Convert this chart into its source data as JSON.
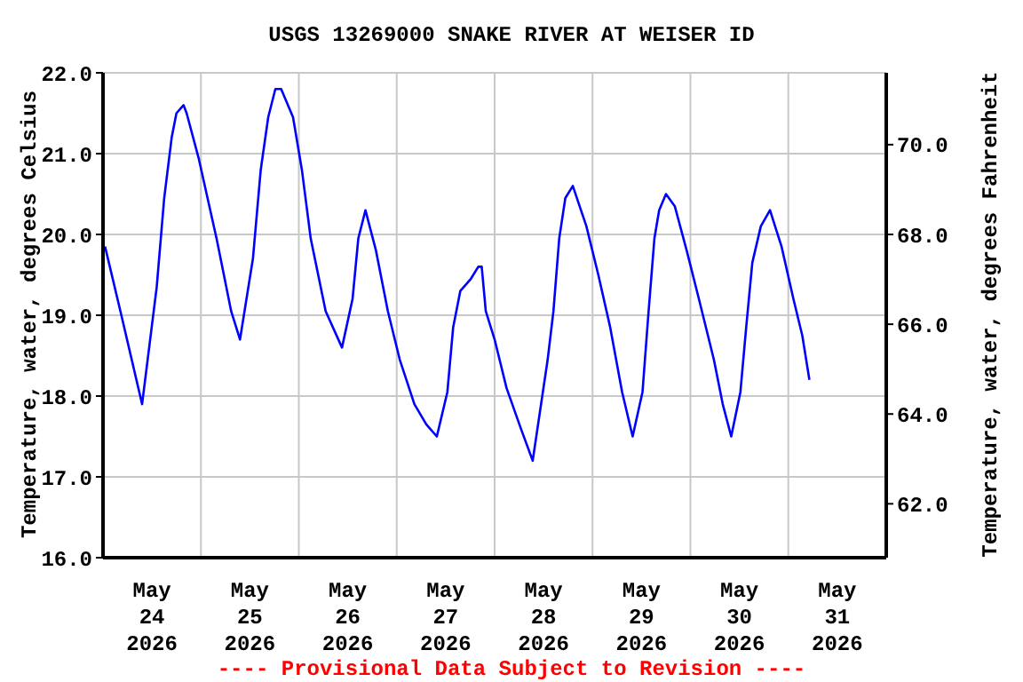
{
  "chart_data": {
    "type": "line",
    "title": "USGS 13269000 SNAKE RIVER AT WEISER ID",
    "ylabel": "Temperature, water, degrees Celsius",
    "y2label": "Temperature, water, degrees Fahrenheit",
    "annotations": [
      "---- Provisional Data Subject to Revision ----"
    ],
    "x": [
      "2026-05-24T00:30",
      "2026-05-24T04:30",
      "2026-05-24T09:35",
      "2026-05-24T13:10",
      "2026-05-24T15:00",
      "2026-05-24T16:50",
      "2026-05-24T18:00",
      "2026-05-24T19:45",
      "2026-05-24T20:30",
      "2026-05-24T23:25",
      "2026-05-25T03:50",
      "2026-05-25T07:25",
      "2026-05-25T09:35",
      "2026-05-25T12:45",
      "2026-05-25T14:40",
      "2026-05-25T16:30",
      "2026-05-25T18:15",
      "2026-05-25T19:40",
      "2026-05-25T22:35",
      "2026-05-26T00:45",
      "2026-05-26T02:55",
      "2026-05-26T06:35",
      "2026-05-26T10:35",
      "2026-05-26T13:10",
      "2026-05-26T14:35",
      "2026-05-26T16:20",
      "2026-05-26T18:55",
      "2026-05-26T21:50",
      "2026-05-27T00:45",
      "2026-05-27T04:20",
      "2026-05-27T07:15",
      "2026-05-27T09:50",
      "2026-05-27T12:25",
      "2026-05-27T13:50",
      "2026-05-27T15:35",
      "2026-05-27T18:10",
      "2026-05-27T20:00",
      "2026-05-27T20:50",
      "2026-05-27T21:50",
      "2026-05-28T00:00",
      "2026-05-28T02:55",
      "2026-05-28T06:25",
      "2026-05-28T09:20",
      "2026-05-28T13:00",
      "2026-05-28T14:25",
      "2026-05-28T15:50",
      "2026-05-28T17:20",
      "2026-05-28T19:10",
      "2026-05-28T22:30",
      "2026-05-29T01:25",
      "2026-05-29T04:20",
      "2026-05-29T07:15",
      "2026-05-29T09:50",
      "2026-05-29T12:15",
      "2026-05-29T13:40",
      "2026-05-29T15:10",
      "2026-05-29T16:20",
      "2026-05-29T18:00",
      "2026-05-29T20:10",
      "2026-05-29T23:05",
      "2026-05-30T02:05",
      "2026-05-30T05:45",
      "2026-05-30T07:55",
      "2026-05-30T10:00",
      "2026-05-30T12:15",
      "2026-05-30T13:40",
      "2026-05-30T15:10",
      "2026-05-30T17:15",
      "2026-05-30T19:30",
      "2026-05-30T22:20",
      "2026-05-31T01:15",
      "2026-05-31T03:25",
      "2026-05-31T05:10"
    ],
    "series": [
      {
        "color": "#0000ff",
        "values": [
          19.85,
          19.0,
          17.9,
          19.35,
          20.45,
          21.2,
          21.5,
          21.6,
          21.5,
          20.95,
          19.95,
          19.05,
          18.7,
          19.7,
          20.8,
          21.45,
          21.8,
          21.8,
          21.45,
          20.8,
          19.95,
          19.05,
          18.6,
          19.2,
          19.95,
          20.3,
          19.8,
          19.05,
          18.45,
          17.9,
          17.65,
          17.5,
          18.05,
          18.85,
          19.3,
          19.45,
          19.6,
          19.6,
          19.05,
          18.7,
          18.1,
          17.6,
          17.2,
          18.45,
          19.05,
          19.95,
          20.45,
          20.6,
          20.1,
          19.5,
          18.85,
          18.05,
          17.5,
          18.05,
          19.0,
          19.95,
          20.3,
          20.5,
          20.35,
          19.8,
          19.2,
          18.45,
          17.9,
          17.5,
          18.05,
          18.85,
          19.65,
          20.1,
          20.3,
          19.85,
          19.2,
          18.75,
          18.2
        ]
      }
    ],
    "xlim": [
      "2026-05-24T00:00",
      "2026-06-01T00:00"
    ],
    "xticks": [
      {
        "value": "2026-05-24T12:00",
        "label": "May\n24\n2026"
      },
      {
        "value": "2026-05-25T00:00",
        "label": null
      },
      {
        "value": "2026-05-25T12:00",
        "label": "May\n25\n2026"
      },
      {
        "value": "2026-05-26T00:00",
        "label": null
      },
      {
        "value": "2026-05-26T12:00",
        "label": "May\n26\n2026"
      },
      {
        "value": "2026-05-27T00:00",
        "label": null
      },
      {
        "value": "2026-05-27T12:00",
        "label": "May\n27\n2026"
      },
      {
        "value": "2026-05-28T00:00",
        "label": null
      },
      {
        "value": "2026-05-28T12:00",
        "label": "May\n28\n2026"
      },
      {
        "value": "2026-05-29T00:00",
        "label": null
      },
      {
        "value": "2026-05-29T12:00",
        "label": "May\n29\n2026"
      },
      {
        "value": "2026-05-30T00:00",
        "label": null
      },
      {
        "value": "2026-05-30T12:00",
        "label": "May\n30\n2026"
      },
      {
        "value": "2026-05-31T00:00",
        "label": null
      },
      {
        "value": "2026-05-31T12:00",
        "label": "May\n31\n2026"
      }
    ],
    "ylim": [
      16,
      22
    ],
    "yticks": [
      {
        "value": 16,
        "label": "16.0"
      },
      {
        "value": 17,
        "label": "17.0"
      },
      {
        "value": 18,
        "label": "18.0"
      },
      {
        "value": 19,
        "label": "19.0"
      },
      {
        "value": 20,
        "label": "20.0"
      },
      {
        "value": 21,
        "label": "21.0"
      },
      {
        "value": 22,
        "label": "22.0"
      }
    ],
    "y2lim": [
      60.8,
      71.6
    ],
    "y2ticks": [
      {
        "value": 62,
        "label": "62.0"
      },
      {
        "value": 64,
        "label": "64.0"
      },
      {
        "value": 66,
        "label": "66.0"
      },
      {
        "value": 68,
        "label": "68.0"
      },
      {
        "value": 70,
        "label": "70.0"
      }
    ],
    "grid": true,
    "marker": "none",
    "line_style": "solid"
  }
}
